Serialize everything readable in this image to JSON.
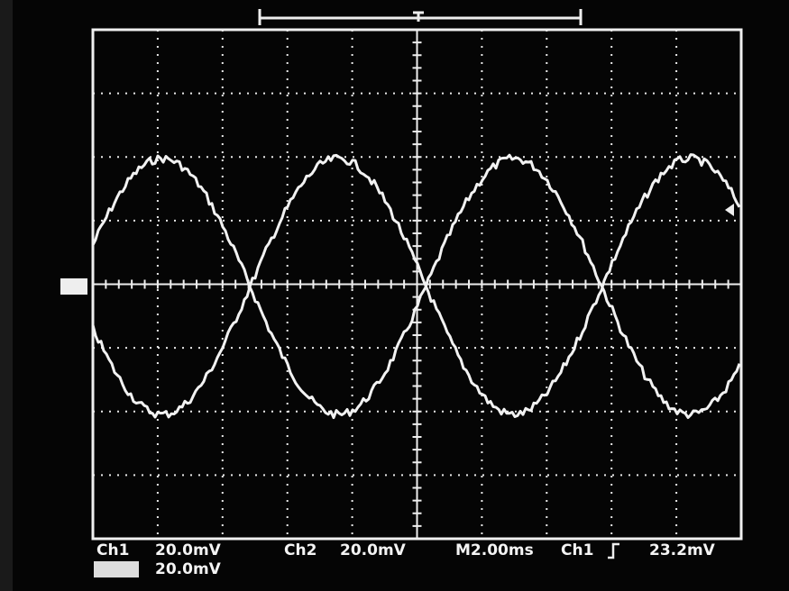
{
  "readout": {
    "row1": {
      "ch1_label": "Ch1",
      "ch1_scale": "20.0mV",
      "ch2_label": "Ch2",
      "ch2_scale": "20.0mV",
      "timebase": "M2.00ms",
      "trigger_source": "Ch1",
      "trigger_level": "23.2mV"
    },
    "row2": {
      "scale": "20.0mV"
    }
  }
}
